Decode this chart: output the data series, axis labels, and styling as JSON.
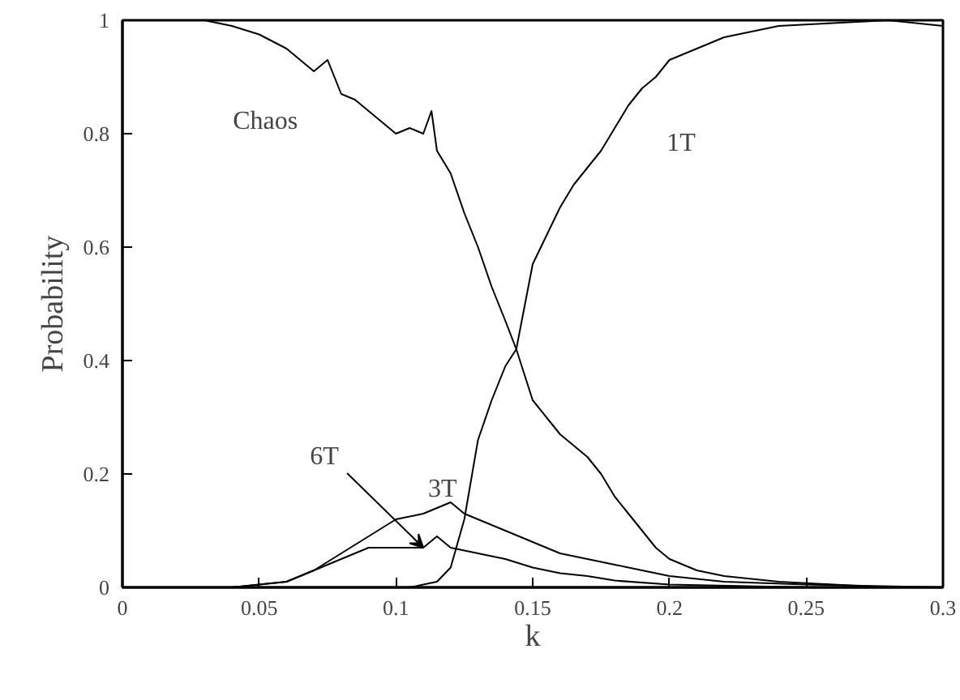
{
  "chart_data": {
    "type": "line",
    "xlabel": "k",
    "ylabel": "Probability",
    "xlim": [
      0,
      0.3
    ],
    "ylim": [
      0,
      1
    ],
    "xticks": [
      0,
      0.05,
      0.1,
      0.15,
      0.2,
      0.25,
      0.3
    ],
    "yticks": [
      0,
      0.2,
      0.4,
      0.6,
      0.8,
      1
    ],
    "grid": false,
    "marker": "none",
    "line_style": "solid",
    "series": [
      {
        "color": "#000000",
        "x": [
          0,
          0.02,
          0.03,
          0.04,
          0.05,
          0.06,
          0.065,
          0.07,
          0.075,
          0.08,
          0.085,
          0.09,
          0.095,
          0.1,
          0.105,
          0.11,
          0.113,
          0.115,
          0.12,
          0.125,
          0.13,
          0.135,
          0.14,
          0.144,
          0.15,
          0.155,
          0.16,
          0.165,
          0.17,
          0.175,
          0.18,
          0.185,
          0.19,
          0.195,
          0.2,
          0.21,
          0.22,
          0.24,
          0.26,
          0.28,
          0.3
        ],
        "values": [
          1,
          1,
          1,
          0.99,
          0.975,
          0.95,
          0.93,
          0.91,
          0.93,
          0.87,
          0.86,
          0.84,
          0.82,
          0.8,
          0.81,
          0.8,
          0.84,
          0.77,
          0.73,
          0.66,
          0.6,
          0.53,
          0.47,
          0.42,
          0.33,
          0.3,
          0.27,
          0.25,
          0.23,
          0.2,
          0.16,
          0.13,
          0.1,
          0.07,
          0.05,
          0.03,
          0.02,
          0.01,
          0.005,
          0,
          0
        ]
      },
      {
        "color": "#000000",
        "x": [
          0,
          0.1,
          0.105,
          0.11,
          0.115,
          0.12,
          0.125,
          0.13,
          0.135,
          0.14,
          0.144,
          0.15,
          0.155,
          0.16,
          0.165,
          0.17,
          0.175,
          0.18,
          0.185,
          0.19,
          0.195,
          0.2,
          0.21,
          0.22,
          0.23,
          0.24,
          0.26,
          0.28,
          0.3
        ],
        "values": [
          0,
          0,
          0,
          0.005,
          0.01,
          0.035,
          0.12,
          0.26,
          0.33,
          0.39,
          0.42,
          0.57,
          0.62,
          0.67,
          0.71,
          0.74,
          0.77,
          0.81,
          0.85,
          0.88,
          0.9,
          0.93,
          0.95,
          0.97,
          0.98,
          0.99,
          0.995,
          1,
          0.99
        ]
      },
      {
        "color": "#000000",
        "x": [
          0,
          0.04,
          0.05,
          0.06,
          0.07,
          0.08,
          0.09,
          0.1,
          0.11,
          0.12,
          0.125,
          0.13,
          0.14,
          0.15,
          0.16,
          0.17,
          0.18,
          0.19,
          0.2,
          0.22,
          0.25,
          0.3
        ],
        "values": [
          0,
          0,
          0.005,
          0.01,
          0.03,
          0.06,
          0.09,
          0.12,
          0.13,
          0.15,
          0.13,
          0.12,
          0.1,
          0.08,
          0.06,
          0.05,
          0.04,
          0.03,
          0.02,
          0.01,
          0.005,
          0
        ]
      },
      {
        "color": "#000000",
        "x": [
          0,
          0.04,
          0.05,
          0.06,
          0.07,
          0.08,
          0.09,
          0.1,
          0.11,
          0.115,
          0.12,
          0.13,
          0.14,
          0.15,
          0.16,
          0.17,
          0.18,
          0.2,
          0.25,
          0.3
        ],
        "values": [
          0,
          0,
          0.005,
          0.01,
          0.03,
          0.05,
          0.07,
          0.07,
          0.07,
          0.09,
          0.07,
          0.06,
          0.05,
          0.035,
          0.025,
          0.02,
          0.012,
          0.005,
          0,
          0
        ]
      }
    ],
    "annotations": [
      {
        "text": "Chaos",
        "x": 0.07,
        "y": 0.91
      },
      {
        "text": "1T",
        "x": 0.19,
        "y": 0.88
      },
      {
        "text": "3T",
        "x": 0.12,
        "y": 0.15
      },
      {
        "text": "6T",
        "x": 0.11,
        "y": 0.07
      }
    ]
  }
}
